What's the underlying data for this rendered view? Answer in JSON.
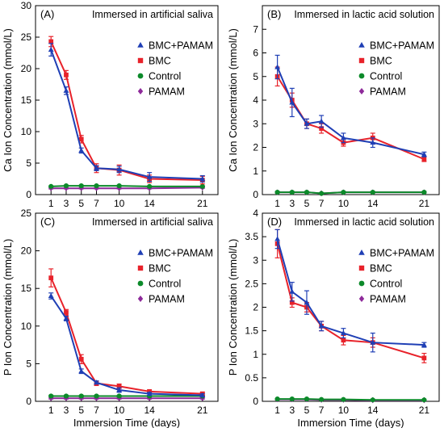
{
  "colors": {
    "BMC+PAMAM": "#1f3fb5",
    "BMC": "#e8222a",
    "Control": "#0c8a2a",
    "PAMAM": "#8e2a9a"
  },
  "markers": {
    "BMC+PAMAM": "triangle",
    "BMC": "square",
    "Control": "circle",
    "PAMAM": "diamond"
  },
  "chart_data": [
    {
      "type": "line",
      "panel_label": "(A)",
      "title": "Immersed in artificial saliva",
      "xlabel": "",
      "ylabel": "Ca Ion Concentration (mmol/L)",
      "ylim": [
        0,
        30
      ],
      "yticks": [
        0,
        5,
        10,
        15,
        20,
        25,
        30
      ],
      "x": [
        1,
        3,
        5,
        7,
        10,
        14,
        21
      ],
      "xtick_labels": [
        "1",
        "3",
        "5",
        "7",
        "10",
        "14",
        "21"
      ],
      "legend_position": "right",
      "series": [
        {
          "name": "BMC+PAMAM",
          "values": [
            23.0,
            16.5,
            7.0,
            4.2,
            4.0,
            2.8,
            2.5
          ],
          "errors": [
            1.0,
            0.6,
            0.4,
            0.4,
            0.5,
            0.7,
            0.5
          ]
        },
        {
          "name": "BMC",
          "values": [
            24.3,
            19.0,
            8.8,
            4.2,
            3.9,
            2.5,
            2.3
          ],
          "errors": [
            0.8,
            0.7,
            0.6,
            0.7,
            0.8,
            0.6,
            0.6
          ]
        },
        {
          "name": "Control",
          "values": [
            1.3,
            1.4,
            1.4,
            1.4,
            1.4,
            1.3,
            1.3
          ],
          "errors": [
            0.1,
            0.1,
            0.1,
            0.1,
            0.1,
            0.1,
            0.1
          ]
        },
        {
          "name": "PAMAM",
          "values": [
            1.0,
            1.0,
            1.0,
            1.0,
            1.0,
            1.0,
            1.1
          ],
          "errors": [
            0.1,
            0.1,
            0.1,
            0.1,
            0.1,
            0.1,
            0.1
          ]
        }
      ]
    },
    {
      "type": "line",
      "panel_label": "(B)",
      "title": "Immersed in lactic acid solution",
      "xlabel": "",
      "ylabel": "Ca Ion Concentration (mmol/L)",
      "ylim": [
        0,
        8
      ],
      "yticks": [
        0,
        1,
        2,
        3,
        4,
        5,
        6,
        7
      ],
      "x": [
        1,
        3,
        5,
        7,
        10,
        14,
        21
      ],
      "xtick_labels": [
        "1",
        "3",
        "5",
        "7",
        "10",
        "14",
        "21"
      ],
      "legend_position": "right",
      "series": [
        {
          "name": "BMC+PAMAM",
          "values": [
            5.4,
            3.9,
            3.0,
            3.1,
            2.4,
            2.2,
            1.7
          ],
          "errors": [
            0.5,
            0.6,
            0.2,
            0.25,
            0.2,
            0.2,
            0.1
          ]
        },
        {
          "name": "BMC",
          "values": [
            5.0,
            4.0,
            3.0,
            2.8,
            2.2,
            2.4,
            1.5
          ],
          "errors": [
            0.4,
            0.3,
            0.2,
            0.2,
            0.15,
            0.2,
            0.1
          ]
        },
        {
          "name": "Control",
          "values": [
            0.1,
            0.1,
            0.1,
            0.05,
            0.1,
            0.1,
            0.1
          ],
          "errors": [
            0.03,
            0.03,
            0.03,
            0.03,
            0.03,
            0.03,
            0.03
          ]
        },
        {
          "name": "PAMAM",
          "values": [
            0.1,
            0.1,
            0.1,
            0.05,
            0.1,
            0.1,
            0.1
          ],
          "errors": [
            0.03,
            0.03,
            0.03,
            0.03,
            0.03,
            0.03,
            0.03
          ]
        }
      ]
    },
    {
      "type": "line",
      "panel_label": "(C)",
      "title": "Immersed in artificial saliva",
      "xlabel": "Immersion Time (days)",
      "ylabel": "P Ion Concentration (mmol/L)",
      "ylim": [
        0,
        25
      ],
      "yticks": [
        0,
        5,
        10,
        15,
        20,
        25
      ],
      "x": [
        1,
        3,
        5,
        7,
        10,
        14,
        21
      ],
      "xtick_labels": [
        "1",
        "3",
        "5",
        "7",
        "10",
        "14",
        "21"
      ],
      "legend_position": "right",
      "series": [
        {
          "name": "BMC+PAMAM",
          "values": [
            14.0,
            11.0,
            4.0,
            2.5,
            1.5,
            1.0,
            0.8
          ],
          "errors": [
            0.4,
            0.3,
            0.3,
            0.2,
            0.3,
            0.2,
            0.2
          ]
        },
        {
          "name": "BMC",
          "values": [
            16.4,
            11.8,
            5.6,
            2.4,
            2.0,
            1.3,
            1.0
          ],
          "errors": [
            1.2,
            0.4,
            0.6,
            0.3,
            0.3,
            0.2,
            0.2
          ]
        },
        {
          "name": "Control",
          "values": [
            0.7,
            0.7,
            0.7,
            0.7,
            0.7,
            0.7,
            0.7
          ],
          "errors": [
            0.1,
            0.1,
            0.1,
            0.1,
            0.1,
            0.1,
            0.1
          ]
        },
        {
          "name": "PAMAM",
          "values": [
            0.4,
            0.4,
            0.4,
            0.4,
            0.4,
            0.4,
            0.4
          ],
          "errors": [
            0.1,
            0.1,
            0.1,
            0.1,
            0.1,
            0.1,
            0.1
          ]
        }
      ]
    },
    {
      "type": "line",
      "panel_label": "(D)",
      "title": "Immersed in lactic acid solution",
      "xlabel": "Immersion Time (days)",
      "ylabel": "P Ion Concentration (mmol/L)",
      "ylim": [
        0,
        4
      ],
      "yticks": [
        0,
        0.5,
        1,
        1.5,
        2,
        2.5,
        3,
        3.5,
        4
      ],
      "x": [
        1,
        3,
        5,
        7,
        10,
        14,
        21
      ],
      "xtick_labels": [
        "1",
        "3",
        "5",
        "7",
        "10",
        "14",
        "21"
      ],
      "legend_position": "right",
      "series": [
        {
          "name": "BMC+PAMAM",
          "values": [
            3.45,
            2.33,
            2.1,
            1.6,
            1.45,
            1.25,
            1.2
          ],
          "errors": [
            0.2,
            0.2,
            0.25,
            0.1,
            0.1,
            0.2,
            0.05
          ]
        },
        {
          "name": "BMC",
          "values": [
            3.35,
            2.1,
            2.0,
            1.6,
            1.3,
            1.25,
            0.92
          ],
          "errors": [
            0.3,
            0.1,
            0.1,
            0.1,
            0.1,
            0.1,
            0.1
          ]
        },
        {
          "name": "Control",
          "values": [
            0.05,
            0.05,
            0.05,
            0.04,
            0.04,
            0.03,
            0.03
          ],
          "errors": [
            0.01,
            0.01,
            0.01,
            0.01,
            0.01,
            0.01,
            0.01
          ]
        },
        {
          "name": "PAMAM",
          "values": [
            0.04,
            0.04,
            0.04,
            0.03,
            0.03,
            0.02,
            0.02
          ],
          "errors": [
            0.01,
            0.01,
            0.01,
            0.01,
            0.01,
            0.01,
            0.01
          ]
        }
      ]
    }
  ]
}
